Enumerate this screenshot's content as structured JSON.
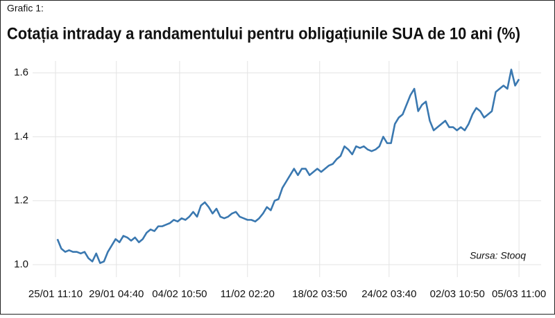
{
  "chart_data": {
    "type": "line",
    "subtitle": "Grafic 1:",
    "title": "Cotația intraday a randamentului pentru obligațiunile SUA de 10 ani (%)",
    "annotation": "Sursa: Stooq",
    "color": "#3a78b0",
    "grid": true,
    "values": [
      1.08,
      1.05,
      1.04,
      1.045,
      1.04,
      1.04,
      1.035,
      1.04,
      1.02,
      1.01,
      1.035,
      1.005,
      1.01,
      1.04,
      1.06,
      1.08,
      1.07,
      1.09,
      1.085,
      1.075,
      1.085,
      1.07,
      1.08,
      1.1,
      1.11,
      1.105,
      1.12,
      1.12,
      1.125,
      1.13,
      1.14,
      1.135,
      1.145,
      1.14,
      1.15,
      1.165,
      1.15,
      1.185,
      1.195,
      1.18,
      1.16,
      1.175,
      1.15,
      1.145,
      1.15,
      1.16,
      1.165,
      1.15,
      1.145,
      1.14,
      1.14,
      1.135,
      1.145,
      1.16,
      1.18,
      1.17,
      1.2,
      1.205,
      1.24,
      1.26,
      1.28,
      1.3,
      1.28,
      1.3,
      1.3,
      1.28,
      1.29,
      1.3,
      1.29,
      1.3,
      1.31,
      1.315,
      1.33,
      1.34,
      1.37,
      1.36,
      1.345,
      1.37,
      1.365,
      1.37,
      1.36,
      1.355,
      1.36,
      1.37,
      1.4,
      1.38,
      1.38,
      1.44,
      1.46,
      1.47,
      1.5,
      1.53,
      1.55,
      1.48,
      1.5,
      1.51,
      1.45,
      1.42,
      1.43,
      1.44,
      1.45,
      1.43,
      1.43,
      1.42,
      1.43,
      1.42,
      1.44,
      1.47,
      1.49,
      1.48,
      1.46,
      1.47,
      1.48,
      1.54,
      1.55,
      1.56,
      1.55,
      1.61,
      1.56,
      1.58
    ],
    "xlim": [
      -6.4,
      124.7
    ],
    "xticks": [
      {
        "value": -0.5,
        "label": "25/01 11:10"
      },
      {
        "value": 15.2,
        "label": "29/01 04:40"
      },
      {
        "value": 31.5,
        "label": "04/02 10:50"
      },
      {
        "value": 49.0,
        "label": "11/02 02:20"
      },
      {
        "value": 67.6,
        "label": "18/02 03:50"
      },
      {
        "value": 85.5,
        "label": "24/02 03:40"
      },
      {
        "value": 103.1,
        "label": "02/03 10:50"
      },
      {
        "value": 119,
        "label": "05/03 11:00"
      }
    ],
    "ylim": [
      0.961,
      1.637
    ],
    "yticks": [
      {
        "value": 1,
        "label": "1.0"
      },
      1.2,
      1.4,
      1.6
    ]
  }
}
